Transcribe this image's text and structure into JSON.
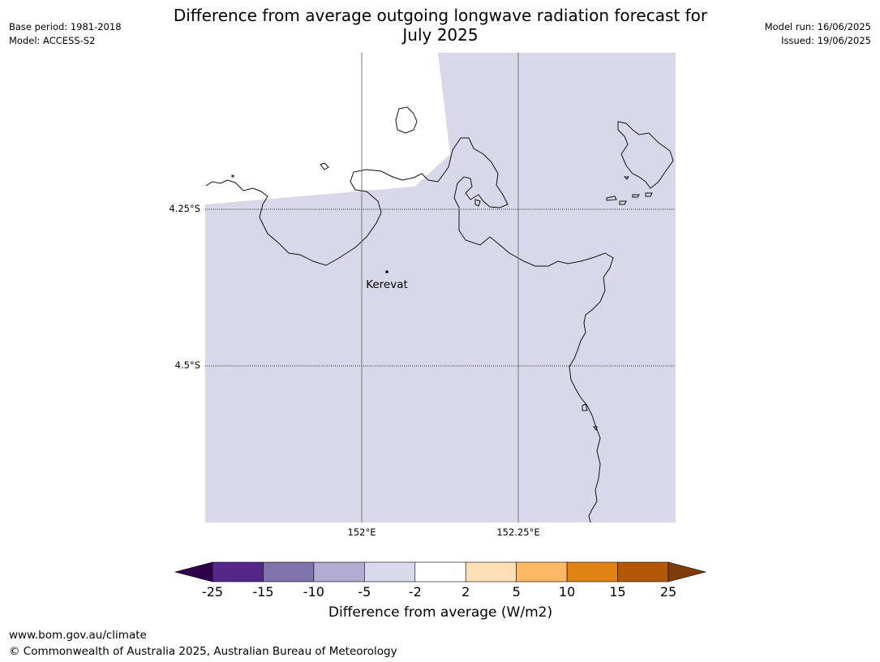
{
  "header": {
    "title": "Difference from average outgoing longwave radiation forecast for\nJuly 2025",
    "base_period": "Base period: 1981-2018",
    "model": "Model: ACCESS-S2",
    "model_run": "Model run: 16/06/2025",
    "issued": "Issued: 19/06/2025"
  },
  "map": {
    "fill_color": "#d8d8ea",
    "place_label": "Kerevat",
    "lat_labels": [
      "4.25°S",
      "4.5°S"
    ],
    "lon_labels": [
      "152°E",
      "152.25°E"
    ]
  },
  "colorbar": {
    "ticks": [
      "-25",
      "-15",
      "-10",
      "-5",
      "-2",
      "2",
      "5",
      "10",
      "15",
      "25"
    ],
    "colors": [
      "#2d004b",
      "#542788",
      "#8073ac",
      "#b2abd2",
      "#d8daeb",
      "#ffffff",
      "#fee0b6",
      "#fdb863",
      "#e08214",
      "#b35806",
      "#7f3b08"
    ],
    "label": "Difference from average (W/m2)"
  },
  "footer": {
    "url": "www.bom.gov.au/climate",
    "copyright": "© Commonwealth of Australia 2025, Australian Bureau of Meteorology"
  }
}
